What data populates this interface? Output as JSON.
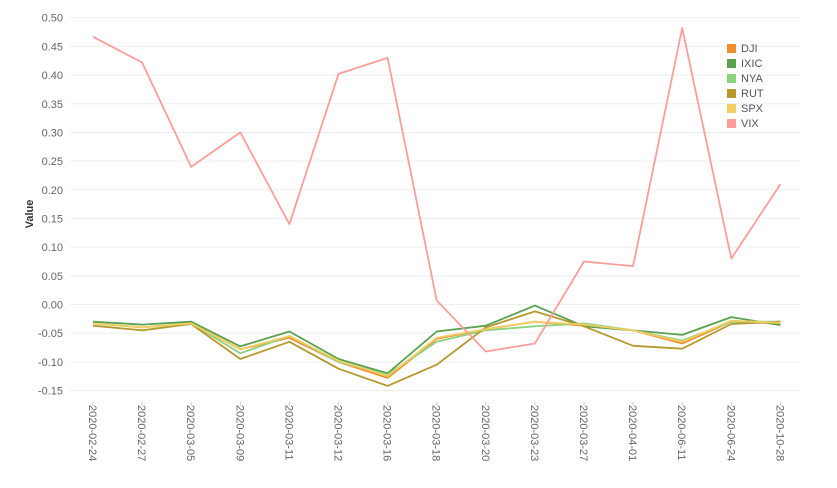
{
  "chart_data": {
    "type": "line",
    "ylabel": "Value",
    "xlabel": "",
    "ylim": [
      -0.17,
      0.51
    ],
    "yticks": [
      0.5,
      0.45,
      0.4,
      0.35,
      0.3,
      0.25,
      0.2,
      0.15,
      0.1,
      0.05,
      0.0,
      -0.05,
      -0.1,
      -0.15
    ],
    "grid": true,
    "legend_position": "top-right",
    "categories": [
      "2020-02-24",
      "2020-02-27",
      "2020-03-05",
      "2020-03-09",
      "2020-03-11",
      "2020-03-12",
      "2020-03-16",
      "2020-03-18",
      "2020-03-20",
      "2020-03-23",
      "2020-03-27",
      "2020-04-01",
      "2020-06-11",
      "2020-06-24",
      "2020-10-28"
    ],
    "series": [
      {
        "name": "DJI",
        "color": "#F28E2B",
        "values": [
          -0.033,
          -0.04,
          -0.033,
          -0.078,
          -0.058,
          -0.1,
          -0.128,
          -0.06,
          -0.043,
          -0.03,
          -0.037,
          -0.045,
          -0.068,
          -0.03,
          -0.033
        ]
      },
      {
        "name": "IXIC",
        "color": "#59A14F",
        "values": [
          -0.03,
          -0.035,
          -0.03,
          -0.073,
          -0.047,
          -0.095,
          -0.12,
          -0.047,
          -0.037,
          -0.002,
          -0.038,
          -0.045,
          -0.053,
          -0.022,
          -0.036
        ]
      },
      {
        "name": "NYA",
        "color": "#8CD17D",
        "values": [
          -0.033,
          -0.04,
          -0.033,
          -0.085,
          -0.055,
          -0.1,
          -0.122,
          -0.065,
          -0.045,
          -0.038,
          -0.033,
          -0.045,
          -0.063,
          -0.03,
          -0.03
        ]
      },
      {
        "name": "RUT",
        "color": "#B6992D",
        "values": [
          -0.037,
          -0.045,
          -0.034,
          -0.095,
          -0.065,
          -0.112,
          -0.142,
          -0.105,
          -0.04,
          -0.012,
          -0.038,
          -0.072,
          -0.077,
          -0.034,
          -0.03
        ]
      },
      {
        "name": "SPX",
        "color": "#F1CE63",
        "values": [
          -0.033,
          -0.04,
          -0.033,
          -0.078,
          -0.055,
          -0.098,
          -0.125,
          -0.058,
          -0.043,
          -0.03,
          -0.035,
          -0.045,
          -0.065,
          -0.028,
          -0.032
        ]
      },
      {
        "name": "VIX",
        "color": "#FF9D9A",
        "values": [
          0.467,
          0.422,
          0.24,
          0.3,
          0.14,
          0.402,
          0.43,
          0.007,
          -0.082,
          -0.068,
          0.075,
          0.067,
          0.482,
          0.08,
          0.21
        ]
      }
    ]
  }
}
